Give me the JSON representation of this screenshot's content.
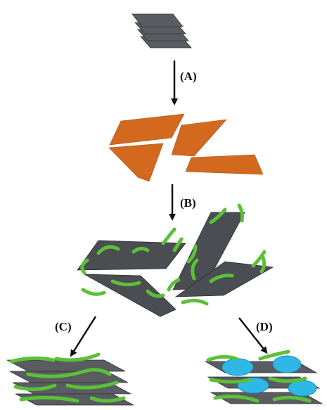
{
  "labels": {
    "a": "(A)",
    "b": "(B)",
    "c": "(C)",
    "d": "(D)"
  }
}
